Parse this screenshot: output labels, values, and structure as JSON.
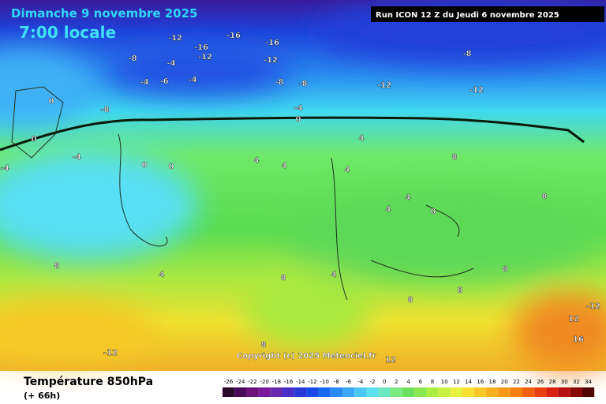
{
  "header": {
    "date": "Dimanche 9 novembre 2025",
    "time": "7:00 locale",
    "run": "Run ICON 12 Z du Jeudi 6 novembre 2025"
  },
  "copyright": "Copyright (c) 2025 Meteociel.fr",
  "footer": {
    "title": "Température 850hPa",
    "lead": "(+ 66h)"
  },
  "scale": {
    "labels": [
      "-26",
      "-24",
      "-22",
      "-20",
      "-18",
      "-16",
      "-14",
      "-12",
      "-10",
      "-8",
      "-6",
      "-4",
      "-2",
      "0",
      "2",
      "4",
      "6",
      "8",
      "10",
      "12",
      "14",
      "16",
      "18",
      "20",
      "22",
      "24",
      "26",
      "28",
      "30",
      "32",
      "34"
    ],
    "colors": [
      "#2a0a2a",
      "#4a0a5a",
      "#6a127a",
      "#7a1a9a",
      "#6a2ab0",
      "#4a30c8",
      "#2a3ad8",
      "#1a4ae8",
      "#1a6af0",
      "#2a8af5",
      "#3aaaf8",
      "#4ac8f5",
      "#5ae0f0",
      "#6ae8c0",
      "#7aea80",
      "#6ee060",
      "#8ae850",
      "#aaee40",
      "#c8f040",
      "#e8f040",
      "#f8e030",
      "#f8c828",
      "#f8b020",
      "#f89818",
      "#f88010",
      "#f06010",
      "#e84010",
      "#d82010",
      "#b81010",
      "#880808",
      "#500404"
    ]
  },
  "map": {
    "contour_labels": [
      "-12",
      "-16",
      "-16",
      "-16",
      "-12",
      "-12",
      "-8",
      "-4",
      "-4",
      "-6",
      "-4",
      "-8",
      "-8",
      "-12",
      "-8",
      "-12",
      "-4",
      "0",
      "-8",
      "0",
      "0",
      "-4",
      "0",
      "0",
      "4",
      "4",
      "4",
      "4",
      "4",
      "4",
      "0",
      "8",
      "8",
      "4",
      "8",
      "8",
      "4",
      "8",
      "8",
      "8",
      "12",
      "12",
      "-12",
      "16",
      "8",
      "-4",
      "-12"
    ]
  }
}
